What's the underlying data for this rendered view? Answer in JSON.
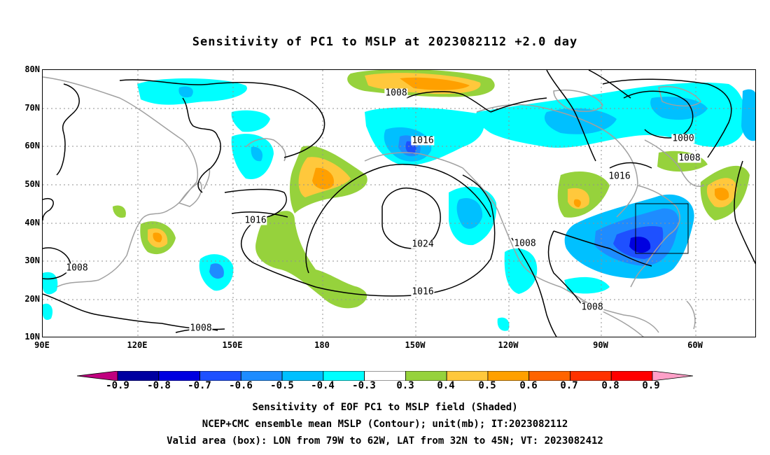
{
  "title": "Sensitivity of PC1 to MSLP at 2023082112 +2.0 day",
  "map": {
    "lat_labels": [
      "80N",
      "70N",
      "60N",
      "50N",
      "40N",
      "30N",
      "20N",
      "10N"
    ],
    "lon_labels": [
      "90E",
      "120E",
      "150E",
      "180",
      "150W",
      "120W",
      "90W",
      "60W"
    ],
    "contour_labels": [
      "1008",
      "1016",
      "1000",
      "1008",
      "1016",
      "1016",
      "1024",
      "1008",
      "1008",
      "1016",
      "1008",
      "1008"
    ],
    "valid_box": {
      "lon_from": "79W",
      "lon_to": "62W",
      "lat_from": "32N",
      "lat_to": "45N"
    }
  },
  "colorbar": {
    "labels": [
      "-0.9",
      "-0.8",
      "-0.7",
      "-0.6",
      "-0.5",
      "-0.4",
      "-0.3",
      "0.3",
      "0.4",
      "0.5",
      "0.6",
      "0.7",
      "0.8",
      "0.9"
    ],
    "colors": [
      "#c0007f",
      "#0000a0",
      "#0000e0",
      "#1e50ff",
      "#1e8cff",
      "#00c0ff",
      "#00ffff",
      "#ffffff",
      "#96d23c",
      "#ffc83c",
      "#ffa000",
      "#ff6400",
      "#ff3200",
      "#ff0000",
      "#ffa0c8"
    ]
  },
  "captions": [
    "Sensitivity of EOF PC1 to MSLP field (Shaded)",
    "NCEP+CMC ensemble mean MSLP (Contour); unit(mb); IT:2023082112",
    "Valid area (box): LON from 79W to 62W, LAT from 32N to 45N; VT: 2023082412"
  ]
}
